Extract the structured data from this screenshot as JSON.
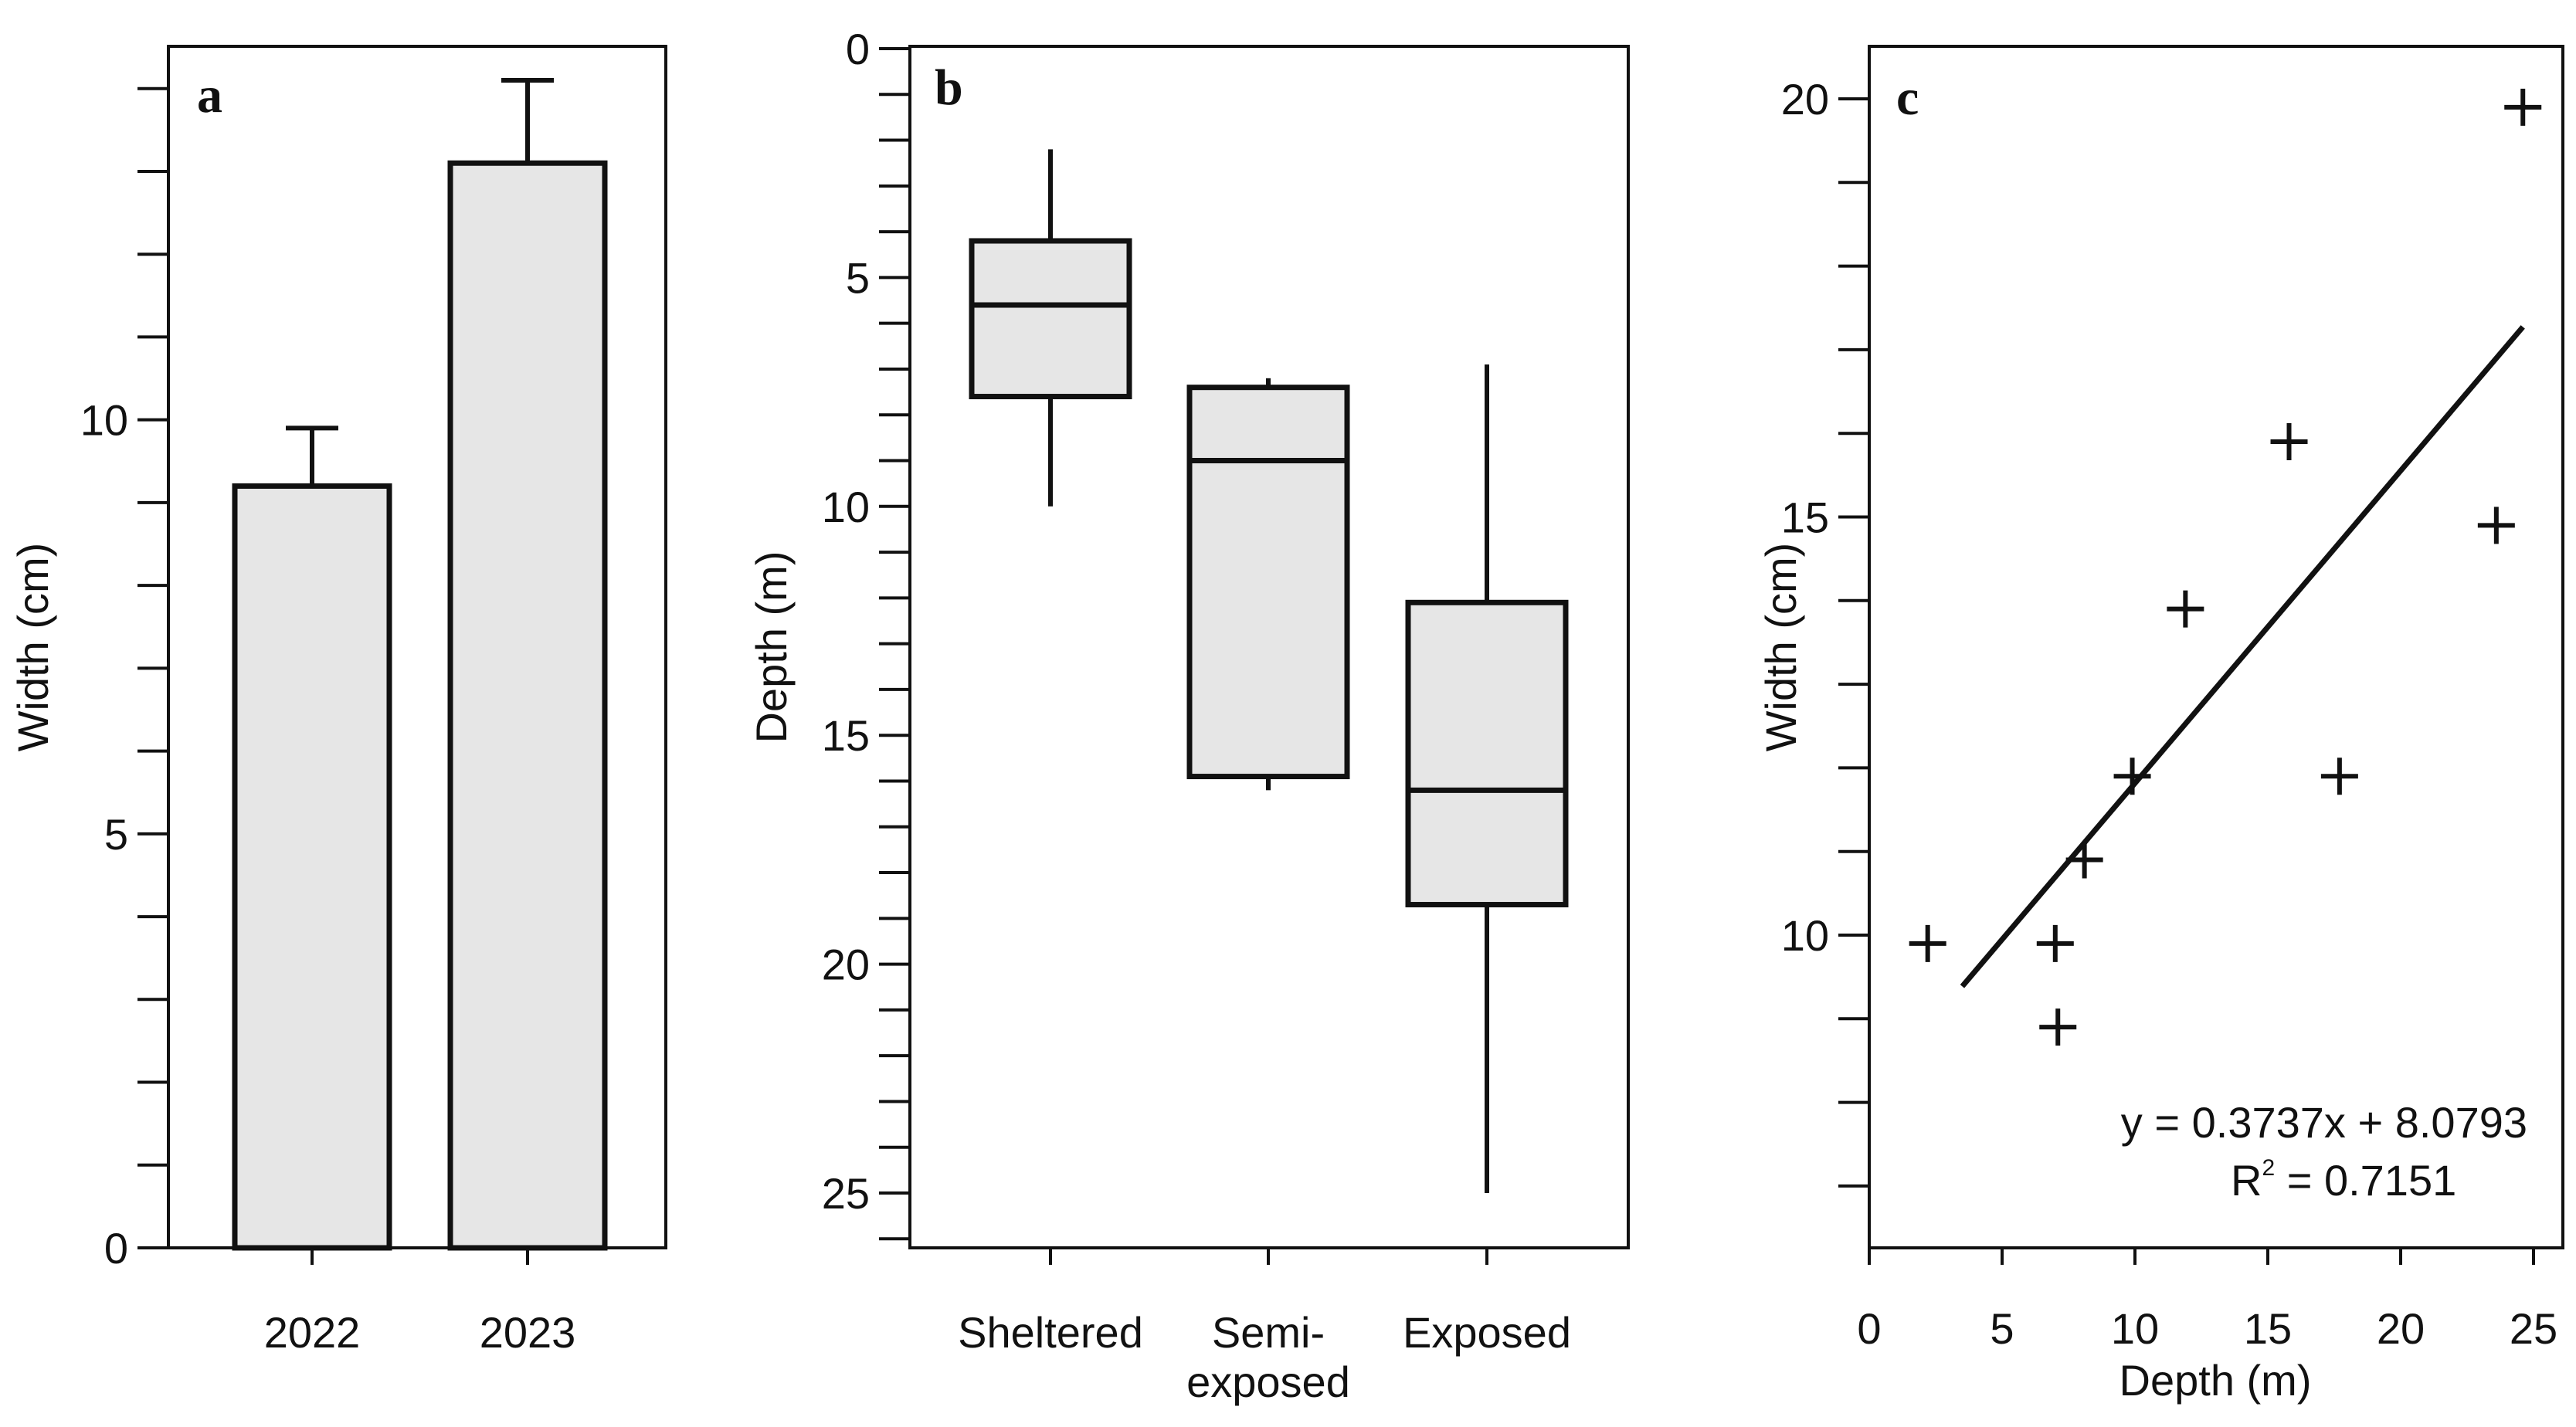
{
  "chart_data": [
    {
      "panel": "a",
      "type": "bar",
      "categories": [
        "2022",
        "2023"
      ],
      "values": [
        9.2,
        13.1
      ],
      "error_upper": [
        9.9,
        14.1
      ],
      "ylabel": "Width (cm)",
      "xlabel": "",
      "ylim": [
        0,
        14.1
      ],
      "yticks_labeled": [
        0,
        5,
        10
      ],
      "yticks_minor": [
        1,
        2,
        3,
        4,
        6,
        7,
        8,
        9,
        11,
        12,
        13,
        14
      ],
      "fill_color": "#e6e6e6"
    },
    {
      "panel": "b",
      "type": "box",
      "categories": [
        "Sheltered",
        "Semi-\nexposed",
        "Exposed"
      ],
      "category_lines": [
        [
          "Sheltered"
        ],
        [
          "Semi-",
          "exposed"
        ],
        [
          "Exposed"
        ]
      ],
      "boxes": [
        {
          "whisker_low": 2.2,
          "q1": 4.2,
          "median": 5.6,
          "q3": 7.6,
          "whisker_high": 10.0
        },
        {
          "whisker_low": 7.2,
          "q1": 7.4,
          "median": 9.0,
          "q3": 15.9,
          "whisker_high": 16.2
        },
        {
          "whisker_low": 6.9,
          "q1": 12.1,
          "median": 16.2,
          "q3": 18.7,
          "whisker_high": 25.0
        }
      ],
      "ylabel": "Depth (m)",
      "xlabel": "",
      "ylim": [
        0,
        26.2
      ],
      "y_inverted": true,
      "yticks_labeled": [
        0,
        5,
        10,
        15,
        20,
        25
      ],
      "fill_color": "#e6e6e6"
    },
    {
      "panel": "c",
      "type": "scatter",
      "points": [
        {
          "x": 2.2,
          "y": 9.9
        },
        {
          "x": 7.0,
          "y": 9.9
        },
        {
          "x": 7.1,
          "y": 8.9
        },
        {
          "x": 8.1,
          "y": 10.9
        },
        {
          "x": 9.9,
          "y": 11.9
        },
        {
          "x": 11.9,
          "y": 13.9
        },
        {
          "x": 15.8,
          "y": 15.9
        },
        {
          "x": 17.7,
          "y": 11.9
        },
        {
          "x": 23.6,
          "y": 14.9
        },
        {
          "x": 24.6,
          "y": 19.9
        }
      ],
      "trendline": {
        "x_start": 3.5,
        "x_end": 24.6,
        "slope": 0.3737,
        "intercept": 8.0793
      },
      "equation": "y = 0.3737x + 8.0793",
      "r2_label": "R",
      "r2_sup": "2",
      "r2_value": " = 0.7151",
      "xlabel": "Depth (m)",
      "ylabel": "Width (cm)",
      "xlim": [
        0,
        25.5
      ],
      "ylim": [
        6.2,
        20.4
      ],
      "xticks_labeled": [
        0,
        5,
        10,
        15,
        20,
        25
      ],
      "yticks_labeled": [
        10,
        15,
        20
      ],
      "yticks_minor": [
        7,
        8,
        9,
        11,
        12,
        13,
        14,
        16,
        17,
        18,
        19
      ]
    }
  ]
}
